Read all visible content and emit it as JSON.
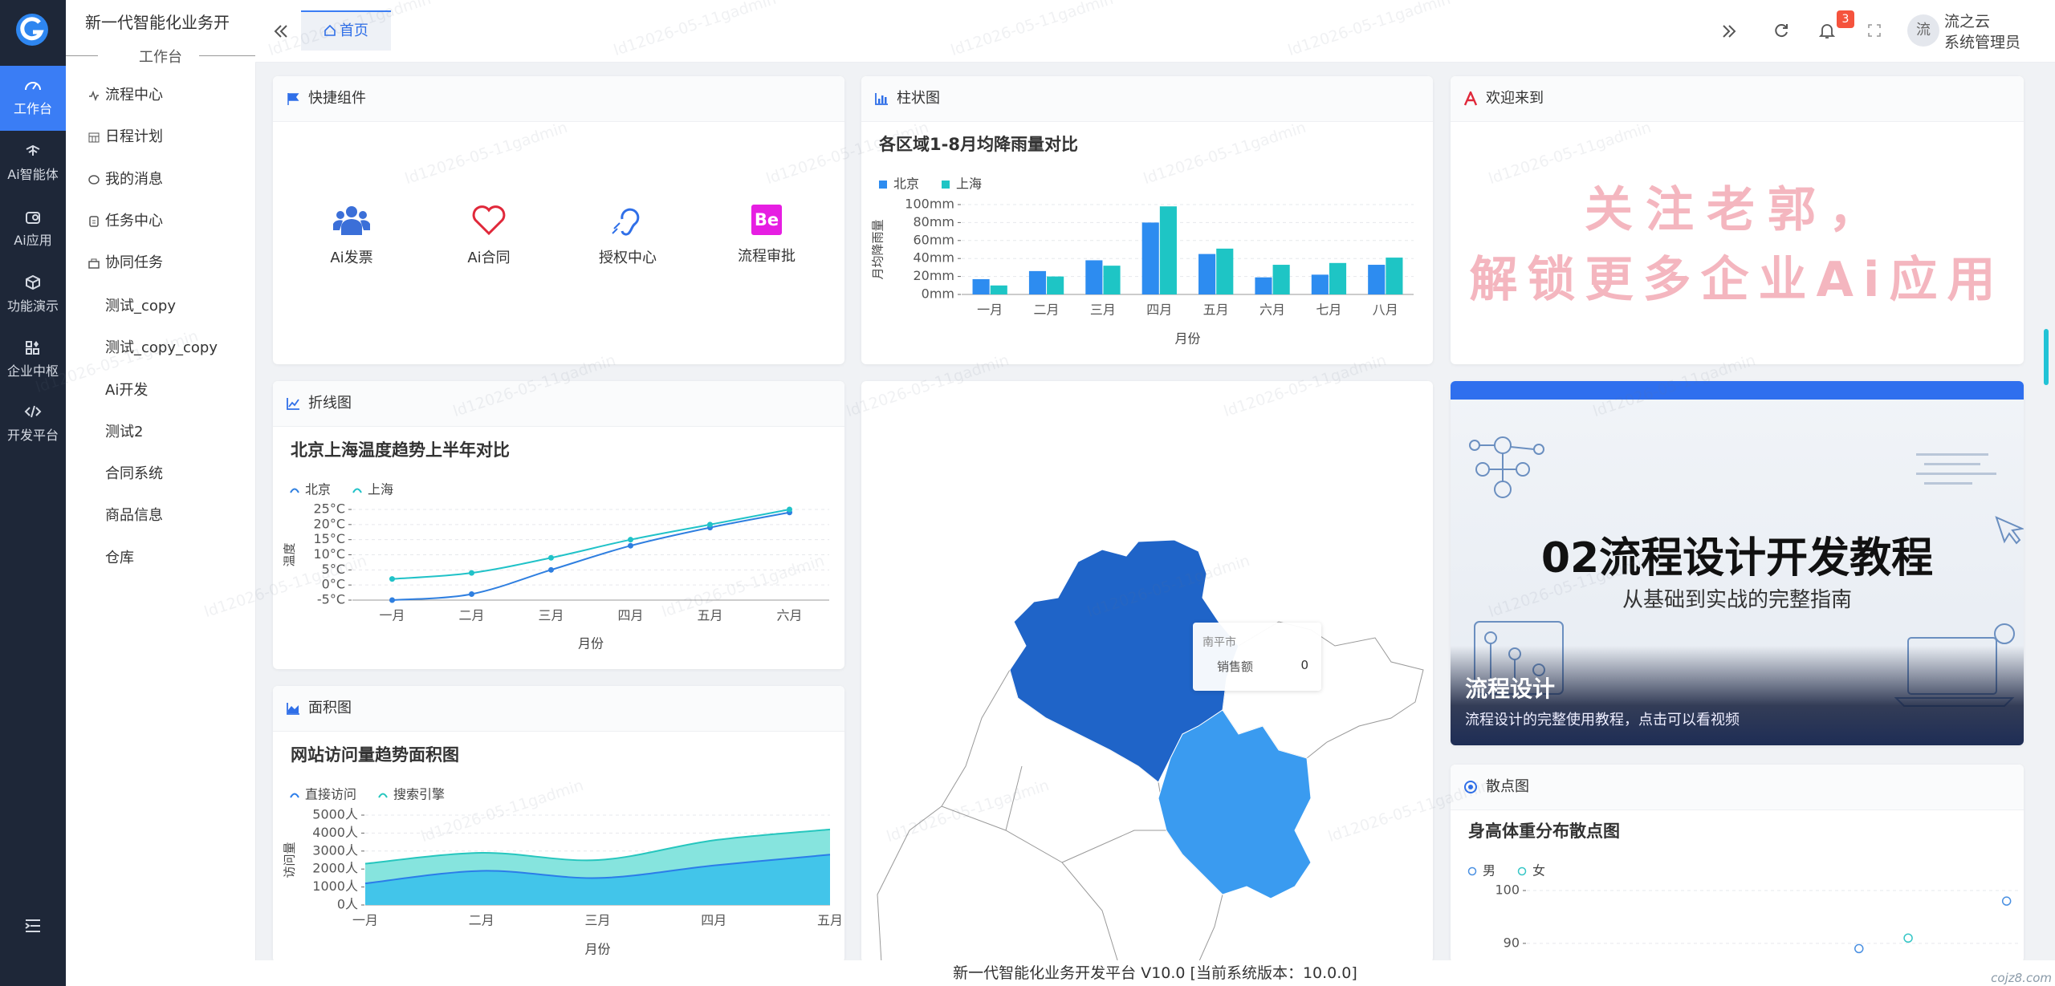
{
  "sidebar": {
    "items": [
      "工作台",
      "Ai智能体",
      "Ai应用",
      "功能演示",
      "企业中枢",
      "开发平台"
    ]
  },
  "menu": {
    "title": "新一代智能化业务开",
    "section": "工作台",
    "items": [
      "流程中心",
      "日程计划",
      "我的消息",
      "任务中心",
      "协同任务",
      "测试_copy",
      "测试_copy_copy",
      "Ai开发",
      "测试2",
      "合同系统",
      "商品信息",
      "仓库"
    ]
  },
  "topbar": {
    "tab": "首页",
    "badge": 3,
    "avatar": "流",
    "user_name": "流之云",
    "user_role": "系统管理员"
  },
  "watermark": "ld12026-05-11gadmin",
  "quick": {
    "title": "快捷组件",
    "icon_text": "Be",
    "items": [
      "Ai发票",
      "Ai合同",
      "授权中心",
      "流程审批"
    ]
  },
  "bar_card": {
    "title": "柱状图",
    "chart": {
      "type": "bar",
      "title": "各区域1-8月均降雨量对比",
      "xlabel": "月份",
      "ylabel": "月均降雨量",
      "categories": [
        "一月",
        "二月",
        "三月",
        "四月",
        "五月",
        "六月",
        "七月",
        "八月"
      ],
      "series": [
        {
          "name": "北京",
          "color": "#2d8cf0",
          "values": [
            17,
            26,
            38,
            80,
            45,
            19,
            22,
            33
          ]
        },
        {
          "name": "上海",
          "color": "#1ec5c5",
          "values": [
            10,
            20,
            32,
            98,
            51,
            33,
            35,
            41
          ]
        }
      ],
      "ylim": [
        0,
        100
      ],
      "yticks": [
        {
          "value": 0,
          "label": "0mm"
        },
        {
          "value": 20,
          "label": "20mm"
        },
        {
          "value": 40,
          "label": "40mm"
        },
        {
          "value": 60,
          "label": "60mm"
        },
        {
          "value": 80,
          "label": "80mm"
        },
        {
          "value": 100,
          "label": "100mm"
        }
      ],
      "grid": true
    }
  },
  "welcome": {
    "title": "欢迎来到",
    "lines": [
      "关注老郭，",
      "解锁更多企业Ai应用"
    ]
  },
  "line_card": {
    "title": "折线图",
    "chart": {
      "type": "line",
      "title": "北京上海温度趋势上半年对比",
      "xlabel": "月份",
      "ylabel": "温度",
      "categories": [
        "一月",
        "二月",
        "三月",
        "四月",
        "五月",
        "六月"
      ],
      "series": [
        {
          "name": "北京",
          "color": "#2f7fe0",
          "values": [
            -5,
            -3,
            5,
            13,
            19,
            24
          ]
        },
        {
          "name": "上海",
          "color": "#20c2c8",
          "values": [
            2,
            4,
            9,
            15,
            20,
            25
          ]
        }
      ],
      "ylim": [
        -5,
        25
      ],
      "yticks": [
        {
          "value": -5,
          "label": "-5°C"
        },
        {
          "value": 0,
          "label": "0°C"
        },
        {
          "value": 5,
          "label": "5°C"
        },
        {
          "value": 10,
          "label": "10°C"
        },
        {
          "value": 15,
          "label": "15°C"
        },
        {
          "value": 20,
          "label": "20°C"
        },
        {
          "value": 25,
          "label": "25°C"
        }
      ],
      "grid": true
    }
  },
  "area_card": {
    "title": "面积图",
    "chart": {
      "type": "area",
      "title": "网站访问量趋势面积图",
      "xlabel": "月份",
      "ylabel": "访问量",
      "categories": [
        "一月",
        "二月",
        "三月",
        "四月",
        "五月"
      ],
      "series": [
        {
          "name": "直接访问",
          "color": "#2b7de9",
          "fill": "#3ec3ea",
          "values": [
            1200,
            1900,
            1500,
            2200,
            2800
          ]
        },
        {
          "name": "搜索引擎",
          "color": "#26c6be",
          "fill": "#7fe3dc",
          "values": [
            2300,
            2900,
            2500,
            3600,
            4200
          ]
        }
      ],
      "ylim": [
        0,
        5000
      ],
      "yticks": [
        {
          "value": 0,
          "label": "0人"
        },
        {
          "value": 1000,
          "label": "1000人"
        },
        {
          "value": 2000,
          "label": "2000人"
        },
        {
          "value": 3000,
          "label": "3000人"
        },
        {
          "value": 4000,
          "label": "4000人"
        },
        {
          "value": 5000,
          "label": "5000人"
        }
      ],
      "grid": true
    }
  },
  "map_card": {
    "tooltip_title": "南平市",
    "tooltip_label": "销售额",
    "tooltip_value": 0
  },
  "video": {
    "title": "02流程设计开发教程",
    "subtitle": "从基础到实战的完整指南",
    "caption_title": "流程设计",
    "caption_text": "流程设计的完整使用教程，点击可以看视频"
  },
  "scatter_card": {
    "title": "散点图",
    "chart": {
      "type": "scatter",
      "title": "身高体重分布散点图",
      "series": [
        {
          "name": "男",
          "color": "#4a90e2",
          "x": [
            177,
            189
          ],
          "values": [
            89,
            98
          ]
        },
        {
          "name": "女",
          "color": "#36c6c6",
          "x": [
            181
          ],
          "values": [
            91
          ]
        }
      ],
      "xlim": [
        150,
        190
      ],
      "ylim": [
        88,
        100
      ],
      "yticks": [
        90,
        100
      ],
      "grid": true
    }
  },
  "footer": "新一代智能化业务开发平台 V10.0 [当前系统版本：10.0.0]",
  "site_mark": "cojz8.com"
}
